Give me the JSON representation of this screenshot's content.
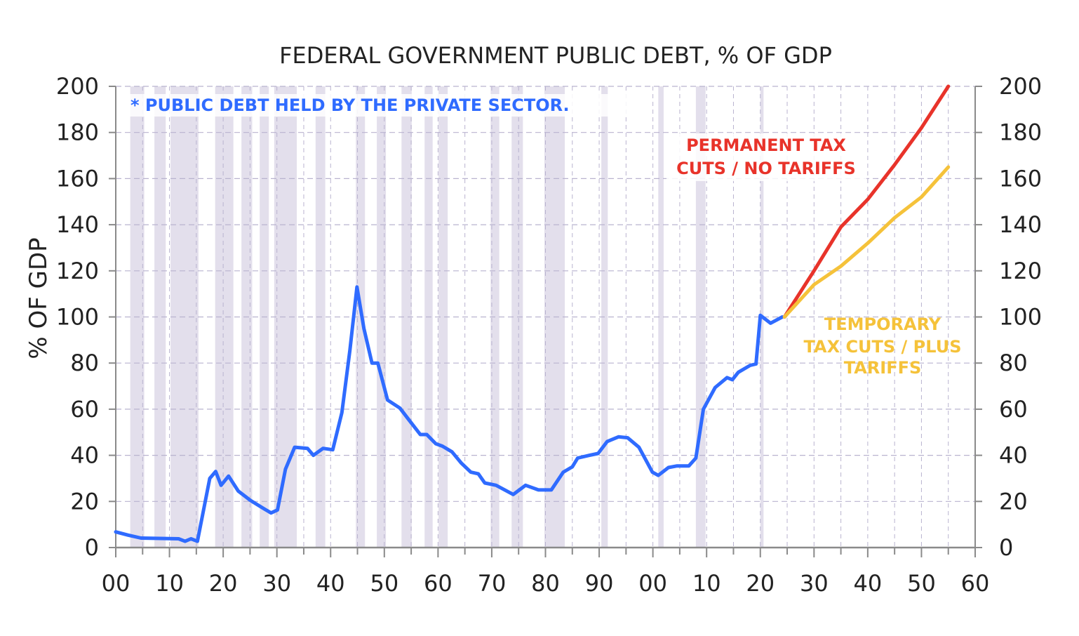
{
  "chart_data": {
    "type": "line",
    "title": "FEDERAL GOVERNMENT PUBLIC DEBT, % OF GDP",
    "ylabel": "% OF GDP",
    "xlabel": "",
    "xlim": [
      1900,
      2060
    ],
    "ylim": [
      0,
      200
    ],
    "grid": true,
    "x_tick_labels": [
      "00",
      "10",
      "20",
      "30",
      "40",
      "50",
      "60",
      "70",
      "80",
      "90",
      "00",
      "10",
      "20",
      "30",
      "40",
      "50",
      "60"
    ],
    "x_tick_years": [
      1900,
      1910,
      1920,
      1930,
      1940,
      1950,
      1960,
      1970,
      1980,
      1990,
      2000,
      2010,
      2020,
      2030,
      2040,
      2050,
      2060
    ],
    "y_ticks": [
      0,
      20,
      40,
      60,
      80,
      100,
      120,
      140,
      160,
      180,
      200
    ],
    "note": "* PUBLIC DEBT HELD BY THE PRIVATE SECTOR.",
    "shaded_periods": [
      [
        1902.7,
        1905.3
      ],
      [
        1907.2,
        1909.3
      ],
      [
        1910.2,
        1915.4
      ],
      [
        1918.5,
        1921.9
      ],
      [
        1923.4,
        1925.4
      ],
      [
        1926.8,
        1928.5
      ],
      [
        1929.5,
        1933.7
      ],
      [
        1937.2,
        1939
      ],
      [
        1944.7,
        1946.4
      ],
      [
        1948.6,
        1950.3
      ],
      [
        1953.2,
        1955.1
      ],
      [
        1957.5,
        1959
      ],
      [
        1960.1,
        1961.8
      ],
      [
        1969.8,
        1971.4
      ],
      [
        1973.7,
        1975.8
      ],
      [
        1979.8,
        1983.6
      ],
      [
        1990.4,
        1991.6
      ],
      [
        2001,
        2002
      ],
      [
        2008,
        2009.8
      ],
      [
        2020,
        2020.6
      ]
    ],
    "colors": {
      "history": "#2f6bff",
      "permanent": "#e8332a",
      "temporary": "#f5c23a",
      "shade": "#e3dfec",
      "grid": "#b9b3cf",
      "axis": "#8a8a8a"
    },
    "series": [
      {
        "key": "history",
        "points": [
          [
            1900,
            6.8
          ],
          [
            1902.3,
            5.4
          ],
          [
            1904.7,
            4.1
          ],
          [
            1911.7,
            3.8
          ],
          [
            1912.9,
            2.7
          ],
          [
            1914,
            3.8
          ],
          [
            1915.2,
            2.7
          ],
          [
            1917.5,
            30
          ],
          [
            1918.6,
            33
          ],
          [
            1919.6,
            27
          ],
          [
            1921,
            31
          ],
          [
            1922.8,
            24.5
          ],
          [
            1925.1,
            20.4
          ],
          [
            1927.5,
            17
          ],
          [
            1928.9,
            15
          ],
          [
            1930.1,
            16.3
          ],
          [
            1931.6,
            34
          ],
          [
            1933.3,
            43.5
          ],
          [
            1935.7,
            43
          ],
          [
            1936.8,
            40
          ],
          [
            1938.6,
            43
          ],
          [
            1940.4,
            42.4
          ],
          [
            1942.1,
            58.5
          ],
          [
            1943.6,
            85.7
          ],
          [
            1944.9,
            113
          ],
          [
            1946.2,
            95
          ],
          [
            1947.7,
            80
          ],
          [
            1948.8,
            80
          ],
          [
            1950.6,
            64
          ],
          [
            1952.9,
            60.5
          ],
          [
            1954.7,
            55
          ],
          [
            1956.7,
            49
          ],
          [
            1957.9,
            49
          ],
          [
            1959.6,
            45
          ],
          [
            1960.8,
            44
          ],
          [
            1962.6,
            41.5
          ],
          [
            1964.3,
            36.7
          ],
          [
            1966.1,
            32.7
          ],
          [
            1967.5,
            32
          ],
          [
            1968.7,
            28
          ],
          [
            1970.8,
            27
          ],
          [
            1974,
            23
          ],
          [
            1976.3,
            27
          ],
          [
            1978.7,
            25
          ],
          [
            1981.1,
            25
          ],
          [
            1983.3,
            32.7
          ],
          [
            1985,
            35
          ],
          [
            1986,
            38.8
          ],
          [
            1988.2,
            40
          ],
          [
            1989.8,
            40.8
          ],
          [
            1991.5,
            46
          ],
          [
            1993.6,
            48
          ],
          [
            1995.3,
            47.6
          ],
          [
            1997.4,
            43.5
          ],
          [
            1999.9,
            32.7
          ],
          [
            2001,
            31.3
          ],
          [
            2002.9,
            34.7
          ],
          [
            2004.5,
            35.4
          ],
          [
            2006.7,
            35.4
          ],
          [
            2008,
            38.8
          ],
          [
            2009.4,
            60
          ],
          [
            2011.6,
            69.4
          ],
          [
            2013.8,
            73.7
          ],
          [
            2014.8,
            72.8
          ],
          [
            2015.9,
            76
          ],
          [
            2018.1,
            79
          ],
          [
            2019.2,
            79.6
          ],
          [
            2020,
            100.7
          ],
          [
            2021.9,
            97.3
          ],
          [
            2024.1,
            100
          ]
        ]
      },
      {
        "key": "permanent",
        "name": "PERMANENT TAX CUTS / NO TARIFFS",
        "points": [
          [
            2024.5,
            100
          ],
          [
            2030,
            120
          ],
          [
            2035,
            139
          ],
          [
            2040,
            151
          ],
          [
            2045,
            166
          ],
          [
            2050,
            182
          ],
          [
            2055,
            200
          ]
        ]
      },
      {
        "key": "temporary",
        "name": "TEMPORARY TAX CUTS / PLUS TARIFFS",
        "points": [
          [
            2024.5,
            100
          ],
          [
            2030,
            114
          ],
          [
            2035,
            122
          ],
          [
            2040,
            132
          ],
          [
            2045,
            143
          ],
          [
            2050,
            152
          ],
          [
            2055,
            165
          ]
        ]
      }
    ],
    "annotations": {
      "permanent": [
        "PERMANENT TAX",
        "CUTS / NO TARIFFS"
      ],
      "temporary": [
        "TEMPORARY",
        "TAX  CUTS / PLUS",
        "TARIFFS"
      ]
    }
  }
}
